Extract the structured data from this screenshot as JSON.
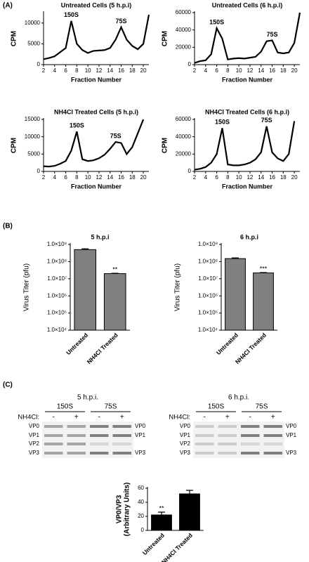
{
  "panel_labels": [
    "(A)",
    "(B)",
    "(C)"
  ],
  "gels": [
    {
      "title": "5 h.p.i.",
      "treatment_label": "NH4Cl:",
      "groups": [
        "150S",
        "75S"
      ],
      "lanes": [
        "-",
        "+",
        "-",
        "+"
      ],
      "left_labels": [
        "VP0",
        "VP1",
        "VP2",
        "VP3"
      ],
      "right_labels": [
        "VP0",
        "VP1",
        "VP3"
      ]
    },
    {
      "title": "6 h.p.i.",
      "treatment_label": "NH4Cl:",
      "groups": [
        "150S",
        "75S"
      ],
      "lanes": [
        "-",
        "+",
        "-",
        "+"
      ],
      "left_labels": [
        "VP0",
        "VP1",
        "VP2",
        "VP3"
      ],
      "right_labels": [
        "VP0",
        "VP1",
        "VP3"
      ]
    }
  ],
  "chart_data": [
    {
      "type": "line",
      "title": "Untreated Cells (5 h.p.i)",
      "x_label": "Fraction Number",
      "y_label": "CPM",
      "x": [
        2,
        3,
        4,
        5,
        6,
        7,
        8,
        9,
        10,
        11,
        12,
        13,
        14,
        15,
        16,
        17,
        18,
        19,
        20,
        21
      ],
      "values": [
        1300,
        1600,
        2000,
        3000,
        4000,
        10500,
        5000,
        3500,
        2800,
        3300,
        3400,
        3500,
        4000,
        6000,
        9000,
        6000,
        4500,
        3700,
        5000,
        12000
      ],
      "xlim": [
        2,
        21
      ],
      "xticks": [
        2,
        4,
        6,
        8,
        10,
        12,
        14,
        16,
        18,
        20
      ],
      "ylim": [
        0,
        12500
      ],
      "yticks": [
        0,
        5000,
        10000
      ],
      "annotations": [
        {
          "text": "150S",
          "x": 7
        },
        {
          "text": "75S",
          "x": 16
        }
      ]
    },
    {
      "type": "line",
      "title": "Untreated Cells (6 h.p.i)",
      "x_label": "Fraction Number",
      "y_label": "CPM",
      "x": [
        2,
        3,
        4,
        5,
        6,
        7,
        8,
        9,
        10,
        11,
        12,
        13,
        14,
        15,
        16,
        17,
        18,
        19,
        20,
        21
      ],
      "values": [
        2000,
        4000,
        5000,
        12000,
        42000,
        30000,
        6000,
        7000,
        7500,
        7000,
        8000,
        9000,
        15000,
        27000,
        28000,
        14000,
        13000,
        14000,
        25000,
        60000
      ],
      "xlim": [
        2,
        21
      ],
      "xticks": [
        2,
        4,
        6,
        8,
        10,
        12,
        14,
        16,
        18,
        20
      ],
      "ylim": [
        0,
        60000
      ],
      "yticks": [
        0,
        20000,
        40000,
        60000
      ],
      "annotations": [
        {
          "text": "150S",
          "x": 6
        },
        {
          "text": "75S",
          "x": 16
        }
      ]
    },
    {
      "type": "line",
      "title": "NH4Cl Treated Cells (5 h.p.i)",
      "x_label": "Fraction Number",
      "y_label": "CPM",
      "x": [
        2,
        3,
        4,
        5,
        6,
        7,
        8,
        9,
        10,
        11,
        12,
        13,
        14,
        15,
        16,
        17,
        18,
        19,
        20
      ],
      "values": [
        1500,
        1400,
        1600,
        2200,
        3000,
        6000,
        11500,
        3500,
        3000,
        3200,
        3800,
        4800,
        6500,
        8500,
        8200,
        5000,
        7000,
        11000,
        15000
      ],
      "xlim": [
        2,
        21
      ],
      "xticks": [
        2,
        4,
        6,
        8,
        10,
        12,
        14,
        16,
        18,
        20
      ],
      "ylim": [
        0,
        15000
      ],
      "yticks": [
        0,
        5000,
        10000,
        15000
      ],
      "annotations": [
        {
          "text": "150S",
          "x": 8
        },
        {
          "text": "75S",
          "x": 15
        }
      ]
    },
    {
      "type": "line",
      "title": "NH4Cl Treated Cells (6 h.p.i)",
      "x_label": "Fraction Number",
      "y_label": "CPM",
      "x": [
        2,
        3,
        4,
        5,
        6,
        7,
        8,
        9,
        10,
        11,
        12,
        13,
        14,
        15,
        16,
        17,
        18,
        19,
        20
      ],
      "values": [
        2000,
        3000,
        5000,
        10000,
        20000,
        50000,
        8000,
        7000,
        7000,
        8000,
        10000,
        14000,
        22000,
        52000,
        22000,
        15000,
        12000,
        20000,
        58000
      ],
      "xlim": [
        2,
        21
      ],
      "xticks": [
        2,
        4,
        6,
        8,
        10,
        12,
        14,
        16,
        18,
        20
      ],
      "ylim": [
        0,
        60000
      ],
      "yticks": [
        0,
        20000,
        40000,
        60000
      ],
      "annotations": [
        {
          "text": "150S",
          "x": 7
        },
        {
          "text": "75S",
          "x": 15
        }
      ]
    },
    {
      "type": "bar",
      "title": "5 h.p.i",
      "y_label": "Virus Titer (pfu)",
      "log_scale": true,
      "color": "#808080",
      "categories": [
        "Untreated",
        "NH4Cl Treated"
      ],
      "values": [
        500000000,
        20000000
      ],
      "errors": [
        60000000,
        1000000
      ],
      "ylim": [
        10000,
        1000000000
      ],
      "yticks": [
        {
          "value": 10000,
          "label": "1.0×10⁴"
        },
        {
          "value": 100000,
          "label": "1.0×10⁵"
        },
        {
          "value": 1000000,
          "label": "1.0×10⁶"
        },
        {
          "value": 10000000,
          "label": "1.0×10⁷"
        },
        {
          "value": 100000000,
          "label": "1.0×10⁸"
        },
        {
          "value": 1000000000,
          "label": "1.0×10⁹"
        }
      ],
      "annotations": [
        {
          "text": "**",
          "category": 1
        }
      ]
    },
    {
      "type": "bar",
      "title": "6 h.p.i",
      "y_label": "Virus Titer (pfu)",
      "log_scale": true,
      "color": "#808080",
      "categories": [
        "Untreated",
        "NH4Cl Treated"
      ],
      "values": [
        150000000,
        22000000
      ],
      "errors": [
        15000000,
        1000000
      ],
      "ylim": [
        10000,
        1000000000
      ],
      "yticks": [
        {
          "value": 10000,
          "label": "1.0×10⁴"
        },
        {
          "value": 100000,
          "label": "1.0×10⁵"
        },
        {
          "value": 1000000,
          "label": "1.0×10⁶"
        },
        {
          "value": 10000000,
          "label": "1.0×10⁷"
        },
        {
          "value": 100000000,
          "label": "1.0×10⁸"
        },
        {
          "value": 1000000000,
          "label": "1.0×10⁹"
        }
      ],
      "annotations": [
        {
          "text": "***",
          "category": 1
        }
      ]
    },
    {
      "type": "bar",
      "y_label": [
        "VP0/VP3",
        "(Arbitrary Units)"
      ],
      "log_scale": false,
      "color": "#000000",
      "categories": [
        "Untreated",
        "NH4Cl Treated"
      ],
      "values": [
        22,
        52
      ],
      "errors": [
        4,
        5
      ],
      "ylim": [
        0,
        60
      ],
      "yticks": [
        0,
        20,
        40,
        60
      ],
      "annotations": [
        {
          "text": "**",
          "category": 0
        }
      ]
    }
  ]
}
